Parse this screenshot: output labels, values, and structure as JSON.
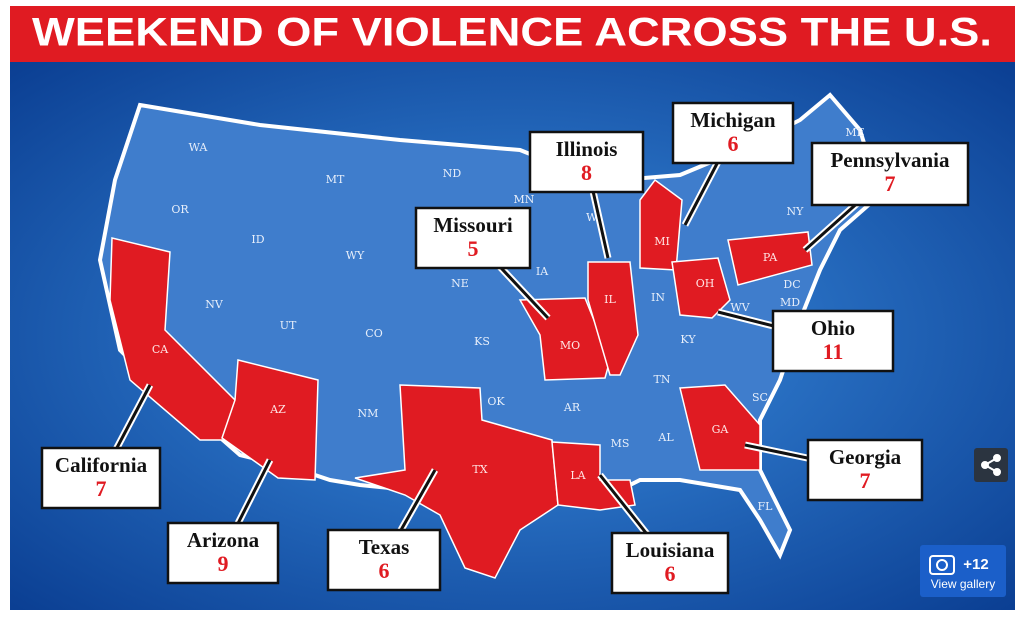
{
  "header": {
    "title": "WEEKEND OF VIOLENCE ACROSS THE U.S."
  },
  "callouts": [
    {
      "state": "California",
      "count": 7
    },
    {
      "state": "Arizona",
      "count": 9
    },
    {
      "state": "Texas",
      "count": 6
    },
    {
      "state": "Louisiana",
      "count": 6
    },
    {
      "state": "Georgia",
      "count": 7
    },
    {
      "state": "Ohio",
      "count": 11
    },
    {
      "state": "Pennsylvania",
      "count": 7
    },
    {
      "state": "Michigan",
      "count": 6
    },
    {
      "state": "Illinois",
      "count": 8
    },
    {
      "state": "Missouri",
      "count": 5
    }
  ],
  "state_labels": [
    "WA",
    "MT",
    "ND",
    "MN",
    "OR",
    "ID",
    "WY",
    "WI",
    "MI",
    "NY",
    "ME",
    "NE",
    "IA",
    "IL",
    "IN",
    "OH",
    "PA",
    "NV",
    "UT",
    "CO",
    "KS",
    "MO",
    "KY",
    "WV",
    "DC",
    "MD",
    "CA",
    "AZ",
    "NM",
    "OK",
    "AR",
    "TN",
    "SC",
    "MS",
    "AL",
    "GA",
    "TX",
    "LA",
    "FL"
  ],
  "gallery": {
    "count": "+12",
    "label": "View gallery"
  }
}
